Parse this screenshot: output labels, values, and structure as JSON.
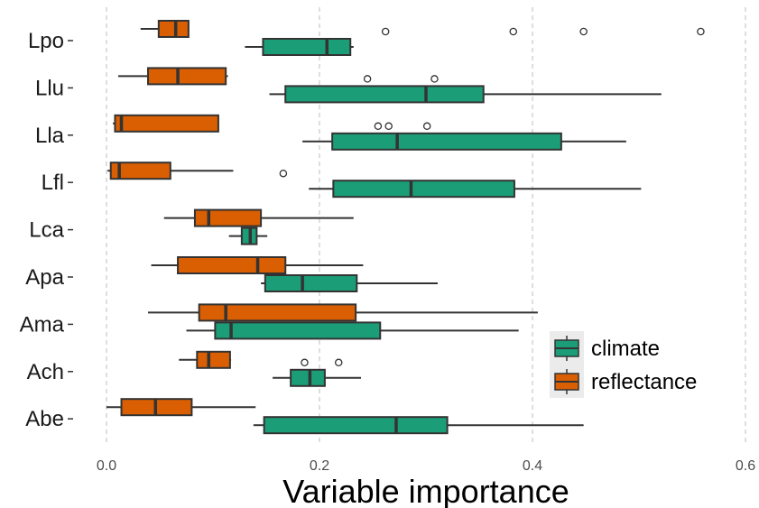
{
  "chart_data": {
    "type": "boxplot",
    "orientation": "horizontal",
    "xlabel": "Variable importance",
    "ylabel": "",
    "xlim": [
      -0.02,
      0.6
    ],
    "x_ticks": [
      0.0,
      0.2,
      0.4,
      0.6
    ],
    "x_tick_labels": [
      "0.0",
      "0.2",
      "0.4",
      "0.6"
    ],
    "grid": "vertical dashed at major x ticks",
    "categories": [
      "Lpo",
      "Llu",
      "Lla",
      "Lfl",
      "Lca",
      "Apa",
      "Ama",
      "Ach",
      "Abe"
    ],
    "legend": {
      "position": "right",
      "entries": [
        "climate",
        "reflectance"
      ]
    },
    "series": [
      {
        "name": "climate",
        "color": "#1b9e77",
        "boxes": [
          {
            "category": "Lpo",
            "min": 0.13,
            "q1": 0.147,
            "median": 0.207,
            "q3": 0.229,
            "max": 0.232,
            "outliers": [
              0.262,
              0.382,
              0.448,
              0.558
            ]
          },
          {
            "category": "Llu",
            "min": 0.153,
            "q1": 0.168,
            "median": 0.3,
            "q3": 0.354,
            "max": 0.521,
            "outliers": [
              0.245,
              0.308
            ]
          },
          {
            "category": "Lla",
            "min": 0.184,
            "q1": 0.212,
            "median": 0.273,
            "q3": 0.427,
            "max": 0.488,
            "outliers": [
              0.255,
              0.265,
              0.301
            ]
          },
          {
            "category": "Lfl",
            "min": 0.19,
            "q1": 0.213,
            "median": 0.286,
            "q3": 0.383,
            "max": 0.502,
            "outliers": [
              0.166
            ]
          },
          {
            "category": "Lca",
            "min": 0.115,
            "q1": 0.127,
            "median": 0.135,
            "q3": 0.141,
            "max": 0.151,
            "outliers": []
          },
          {
            "category": "Apa",
            "min": 0.145,
            "q1": 0.149,
            "median": 0.184,
            "q3": 0.235,
            "max": 0.311,
            "outliers": []
          },
          {
            "category": "Ama",
            "min": 0.075,
            "q1": 0.102,
            "median": 0.117,
            "q3": 0.257,
            "max": 0.387,
            "outliers": []
          },
          {
            "category": "Ach",
            "min": 0.156,
            "q1": 0.173,
            "median": 0.191,
            "q3": 0.205,
            "max": 0.239,
            "outliers": [
              0.186,
              0.218
            ]
          },
          {
            "category": "Abe",
            "min": 0.138,
            "q1": 0.148,
            "median": 0.272,
            "q3": 0.32,
            "max": 0.448,
            "outliers": []
          }
        ]
      },
      {
        "name": "reflectance",
        "color": "#d95f02",
        "boxes": [
          {
            "category": "Lpo",
            "min": 0.032,
            "q1": 0.049,
            "median": 0.065,
            "q3": 0.077,
            "max": 0.077,
            "outliers": []
          },
          {
            "category": "Llu",
            "min": 0.011,
            "q1": 0.039,
            "median": 0.067,
            "q3": 0.112,
            "max": 0.114,
            "outliers": []
          },
          {
            "category": "Lla",
            "min": 0.006,
            "q1": 0.008,
            "median": 0.014,
            "q3": 0.105,
            "max": 0.105,
            "outliers": []
          },
          {
            "category": "Lfl",
            "min": 0.001,
            "q1": 0.004,
            "median": 0.012,
            "q3": 0.06,
            "max": 0.119,
            "outliers": []
          },
          {
            "category": "Lca",
            "min": 0.054,
            "q1": 0.083,
            "median": 0.096,
            "q3": 0.145,
            "max": 0.232,
            "outliers": []
          },
          {
            "category": "Apa",
            "min": 0.042,
            "q1": 0.067,
            "median": 0.142,
            "q3": 0.168,
            "max": 0.241,
            "outliers": []
          },
          {
            "category": "Ama",
            "min": 0.039,
            "q1": 0.087,
            "median": 0.112,
            "q3": 0.234,
            "max": 0.405,
            "outliers": []
          },
          {
            "category": "Ach",
            "min": 0.068,
            "q1": 0.085,
            "median": 0.096,
            "q3": 0.116,
            "max": 0.117,
            "outliers": []
          },
          {
            "category": "Abe",
            "min": 0.0,
            "q1": 0.014,
            "median": 0.046,
            "q3": 0.08,
            "max": 0.14,
            "outliers": []
          }
        ]
      }
    ]
  }
}
